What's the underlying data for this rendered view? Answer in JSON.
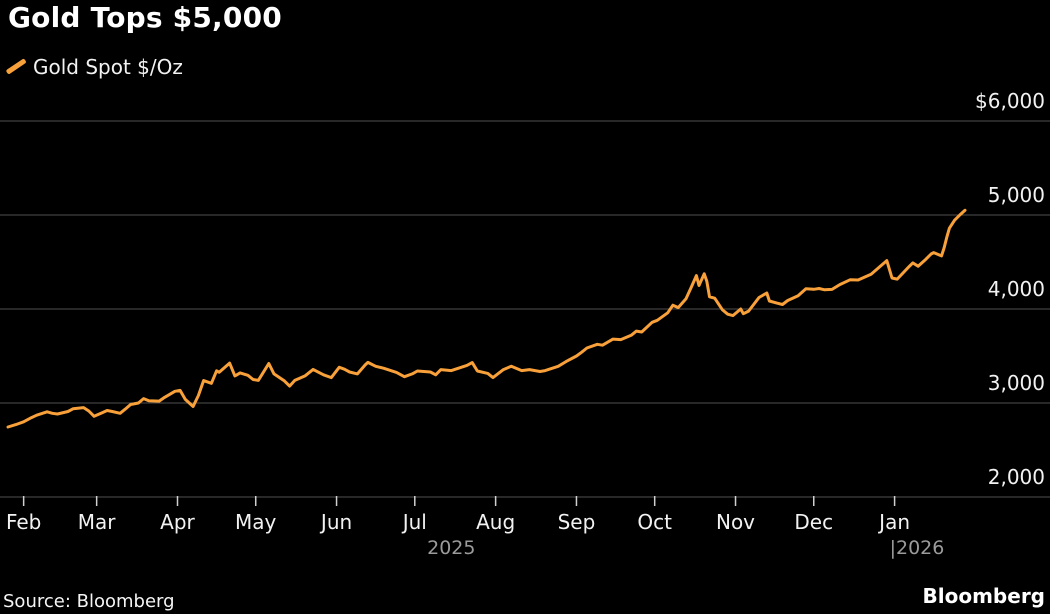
{
  "title": "Gold Tops $5,000",
  "legend": {
    "series_label": "Gold Spot $/Oz"
  },
  "footer": {
    "source": "Source: Bloomberg",
    "brand": "Bloomberg"
  },
  "colors": {
    "background": "#000000",
    "line": "#f8a03a",
    "gridline": "#515151",
    "tick": "#d0d0d0",
    "axis_label": "#f2f2f2",
    "year_label": "#9b9b9b",
    "title_text": "#ffffff"
  },
  "chart_data": {
    "type": "line",
    "title": "Gold Tops $5,000",
    "grid": "horizontal",
    "legend_position": "top-left",
    "ylim": [
      2000,
      6000
    ],
    "x_domain": [
      "2025-01-26",
      "2026-01-28"
    ],
    "y_ticks": [
      {
        "value": 6000,
        "label": "$6,000"
      },
      {
        "value": 5000,
        "label": "5,000"
      },
      {
        "value": 4000,
        "label": "4,000"
      },
      {
        "value": 3000,
        "label": "3,000"
      },
      {
        "value": 2000,
        "label": "2,000"
      }
    ],
    "x_ticks": [
      {
        "date": "2025-02-01",
        "label": "Feb"
      },
      {
        "date": "2025-03-01",
        "label": "Mar"
      },
      {
        "date": "2025-04-01",
        "label": "Apr"
      },
      {
        "date": "2025-05-01",
        "label": "May"
      },
      {
        "date": "2025-06-01",
        "label": "Jun"
      },
      {
        "date": "2025-07-01",
        "label": "Jul"
      },
      {
        "date": "2025-08-01",
        "label": "Aug"
      },
      {
        "date": "2025-09-01",
        "label": "Sep"
      },
      {
        "date": "2025-10-01",
        "label": "Oct"
      },
      {
        "date": "2025-11-01",
        "label": "Nov"
      },
      {
        "date": "2025-12-01",
        "label": "Dec"
      },
      {
        "date": "2026-01-01",
        "label": "Jan"
      }
    ],
    "year_labels": [
      "2025",
      "|2026"
    ],
    "series": [
      {
        "name": "Gold Spot $/Oz",
        "color": "#f8a03a",
        "points": [
          [
            "2025-01-26",
            2745
          ],
          [
            "2025-01-29",
            2770
          ],
          [
            "2025-02-01",
            2800
          ],
          [
            "2025-02-04",
            2845
          ],
          [
            "2025-02-06",
            2870
          ],
          [
            "2025-02-10",
            2906
          ],
          [
            "2025-02-12",
            2890
          ],
          [
            "2025-02-14",
            2883
          ],
          [
            "2025-02-18",
            2910
          ],
          [
            "2025-02-20",
            2939
          ],
          [
            "2025-02-24",
            2951
          ],
          [
            "2025-02-26",
            2915
          ],
          [
            "2025-02-28",
            2858
          ],
          [
            "2025-03-03",
            2895
          ],
          [
            "2025-03-05",
            2920
          ],
          [
            "2025-03-07",
            2910
          ],
          [
            "2025-03-10",
            2890
          ],
          [
            "2025-03-12",
            2935
          ],
          [
            "2025-03-14",
            2984
          ],
          [
            "2025-03-17",
            3000
          ],
          [
            "2025-03-19",
            3047
          ],
          [
            "2025-03-21",
            3023
          ],
          [
            "2025-03-25",
            3020
          ],
          [
            "2025-03-27",
            3060
          ],
          [
            "2025-03-31",
            3124
          ],
          [
            "2025-04-02",
            3134
          ],
          [
            "2025-04-04",
            3038
          ],
          [
            "2025-04-07",
            2963
          ],
          [
            "2025-04-09",
            3080
          ],
          [
            "2025-04-11",
            3238
          ],
          [
            "2025-04-14",
            3210
          ],
          [
            "2025-04-16",
            3343
          ],
          [
            "2025-04-17",
            3327
          ],
          [
            "2025-04-21",
            3424
          ],
          [
            "2025-04-23",
            3288
          ],
          [
            "2025-04-25",
            3320
          ],
          [
            "2025-04-28",
            3295
          ],
          [
            "2025-04-30",
            3250
          ],
          [
            "2025-05-02",
            3240
          ],
          [
            "2025-05-06",
            3420
          ],
          [
            "2025-05-08",
            3310
          ],
          [
            "2025-05-12",
            3235
          ],
          [
            "2025-05-14",
            3180
          ],
          [
            "2025-05-16",
            3240
          ],
          [
            "2025-05-20",
            3290
          ],
          [
            "2025-05-23",
            3357
          ],
          [
            "2025-05-27",
            3300
          ],
          [
            "2025-05-30",
            3270
          ],
          [
            "2025-06-02",
            3380
          ],
          [
            "2025-06-04",
            3360
          ],
          [
            "2025-06-06",
            3330
          ],
          [
            "2025-06-09",
            3310
          ],
          [
            "2025-06-12",
            3405
          ],
          [
            "2025-06-13",
            3432
          ],
          [
            "2025-06-16",
            3390
          ],
          [
            "2025-06-19",
            3370
          ],
          [
            "2025-06-24",
            3325
          ],
          [
            "2025-06-27",
            3280
          ],
          [
            "2025-06-30",
            3310
          ],
          [
            "2025-07-02",
            3340
          ],
          [
            "2025-07-07",
            3330
          ],
          [
            "2025-07-09",
            3300
          ],
          [
            "2025-07-11",
            3355
          ],
          [
            "2025-07-15",
            3345
          ],
          [
            "2025-07-21",
            3400
          ],
          [
            "2025-07-23",
            3430
          ],
          [
            "2025-07-25",
            3340
          ],
          [
            "2025-07-29",
            3315
          ],
          [
            "2025-07-31",
            3270
          ],
          [
            "2025-08-04",
            3355
          ],
          [
            "2025-08-07",
            3390
          ],
          [
            "2025-08-11",
            3345
          ],
          [
            "2025-08-14",
            3355
          ],
          [
            "2025-08-18",
            3335
          ],
          [
            "2025-08-20",
            3345
          ],
          [
            "2025-08-25",
            3390
          ],
          [
            "2025-08-28",
            3440
          ],
          [
            "2025-09-01",
            3500
          ],
          [
            "2025-09-03",
            3540
          ],
          [
            "2025-09-05",
            3585
          ],
          [
            "2025-09-09",
            3625
          ],
          [
            "2025-09-11",
            3615
          ],
          [
            "2025-09-15",
            3680
          ],
          [
            "2025-09-18",
            3675
          ],
          [
            "2025-09-22",
            3720
          ],
          [
            "2025-09-24",
            3765
          ],
          [
            "2025-09-26",
            3755
          ],
          [
            "2025-09-30",
            3858
          ],
          [
            "2025-10-02",
            3880
          ],
          [
            "2025-10-06",
            3960
          ],
          [
            "2025-10-08",
            4040
          ],
          [
            "2025-10-10",
            4015
          ],
          [
            "2025-10-13",
            4110
          ],
          [
            "2025-10-15",
            4230
          ],
          [
            "2025-10-17",
            4355
          ],
          [
            "2025-10-18",
            4250
          ],
          [
            "2025-10-20",
            4375
          ],
          [
            "2025-10-21",
            4295
          ],
          [
            "2025-10-22",
            4130
          ],
          [
            "2025-10-24",
            4115
          ],
          [
            "2025-10-27",
            3990
          ],
          [
            "2025-10-29",
            3945
          ],
          [
            "2025-10-31",
            3930
          ],
          [
            "2025-11-03",
            4000
          ],
          [
            "2025-11-04",
            3950
          ],
          [
            "2025-11-06",
            3978
          ],
          [
            "2025-11-10",
            4122
          ],
          [
            "2025-11-13",
            4170
          ],
          [
            "2025-11-14",
            4085
          ],
          [
            "2025-11-17",
            4062
          ],
          [
            "2025-11-19",
            4048
          ],
          [
            "2025-11-21",
            4090
          ],
          [
            "2025-11-25",
            4140
          ],
          [
            "2025-11-28",
            4215
          ],
          [
            "2025-12-01",
            4210
          ],
          [
            "2025-12-03",
            4218
          ],
          [
            "2025-12-05",
            4205
          ],
          [
            "2025-12-08",
            4208
          ],
          [
            "2025-12-11",
            4260
          ],
          [
            "2025-12-15",
            4312
          ],
          [
            "2025-12-18",
            4308
          ],
          [
            "2025-12-23",
            4370
          ],
          [
            "2025-12-29",
            4515
          ],
          [
            "2025-12-31",
            4330
          ],
          [
            "2026-01-02",
            4318
          ],
          [
            "2026-01-06",
            4435
          ],
          [
            "2026-01-08",
            4490
          ],
          [
            "2026-01-10",
            4455
          ],
          [
            "2026-01-13",
            4530
          ],
          [
            "2026-01-15",
            4585
          ],
          [
            "2026-01-16",
            4600
          ],
          [
            "2026-01-19",
            4565
          ],
          [
            "2026-01-20",
            4650
          ],
          [
            "2026-01-21",
            4760
          ],
          [
            "2026-01-22",
            4860
          ],
          [
            "2026-01-24",
            4945
          ],
          [
            "2026-01-26",
            5000
          ],
          [
            "2026-01-28",
            5050
          ]
        ]
      }
    ]
  }
}
